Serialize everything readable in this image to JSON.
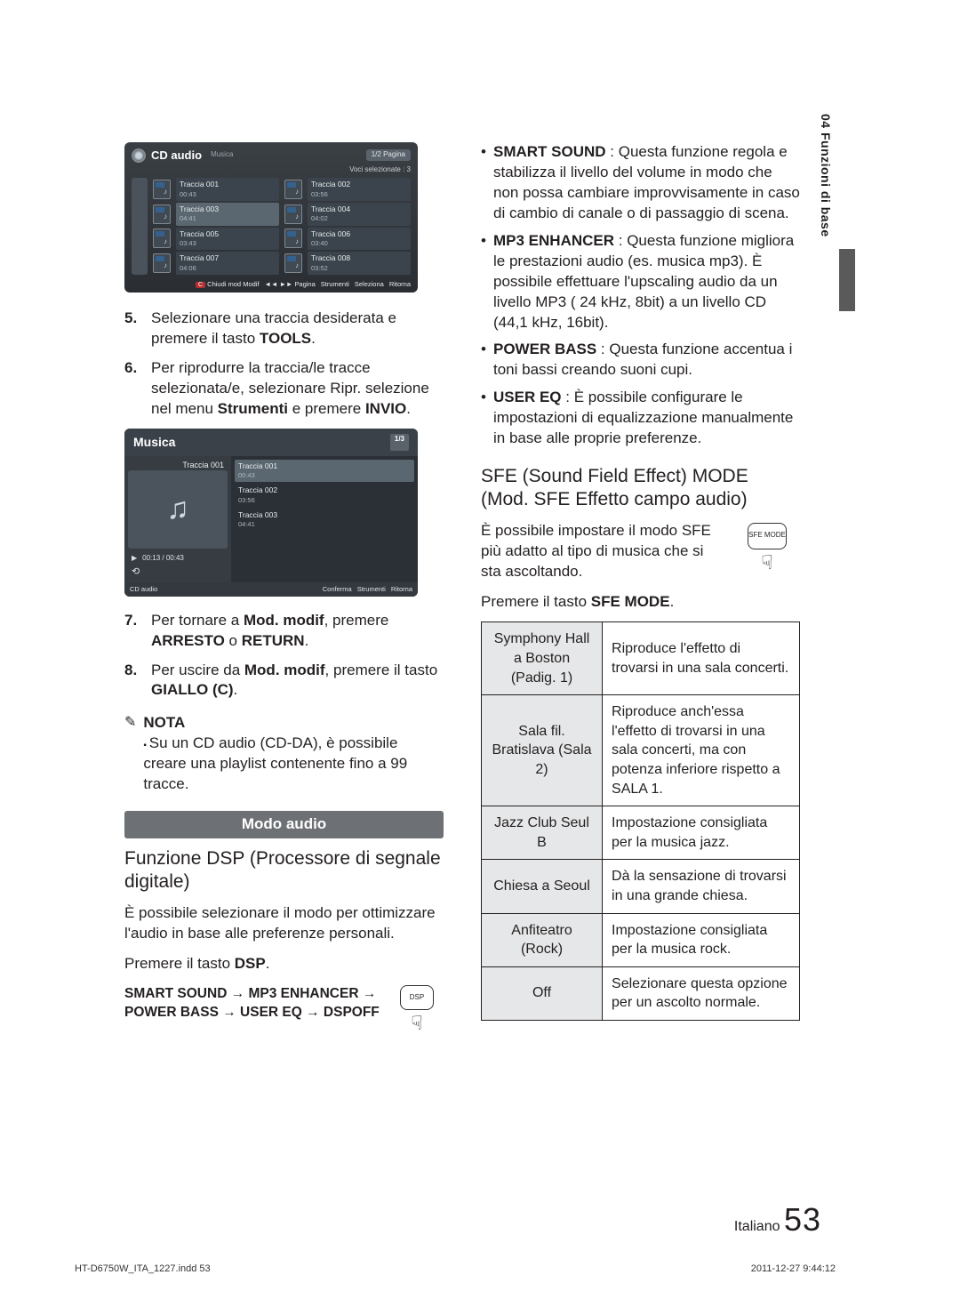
{
  "side_tab": "04  Funzioni di base",
  "cd_panel": {
    "title": "CD audio",
    "subtitle": "Musica",
    "pager": "1/2  Pagina",
    "selcount": "Voci selezionate : 3",
    "rows": [
      [
        {
          "name": "Traccia 001",
          "time": "00:43",
          "sel": false
        },
        {
          "name": "Traccia 002",
          "time": "03:56",
          "sel": false
        }
      ],
      [
        {
          "name": "Traccia 003",
          "time": "04:41",
          "sel": true
        },
        {
          "name": "Traccia 004",
          "time": "04:02",
          "sel": false
        }
      ],
      [
        {
          "name": "Traccia 005",
          "time": "03:43",
          "sel": false
        },
        {
          "name": "Traccia 006",
          "time": "03:40",
          "sel": false
        }
      ],
      [
        {
          "name": "Traccia 007",
          "time": "04:06",
          "sel": false
        },
        {
          "name": "Traccia 008",
          "time": "03:52",
          "sel": false
        }
      ]
    ],
    "footer": {
      "close_badge": "C",
      "close": "Chiudi mod Modif",
      "page": "◄◄ ►► Pagina",
      "tools": "Strumenti",
      "select": "Seleziona",
      "return": "Ritorna"
    }
  },
  "steps_left_a": [
    {
      "n": "5.",
      "html": "Selezionare una traccia desiderata e premere il tasto <b>TOOLS</b>."
    },
    {
      "n": "6.",
      "html": "Per riprodurre la traccia/le tracce selezionata/e, selezionare Ripr. selezione nel menu <b>Strumenti</b> e premere <b>INVIO</b>."
    }
  ],
  "musica_panel": {
    "title": "Musica",
    "pager": "1/3",
    "current": "Traccia 001",
    "progress": "00:13 / 00:43",
    "rows": [
      {
        "name": "Traccia 001",
        "time": "00:43",
        "sel": true
      },
      {
        "name": "Traccia 002",
        "time": "03:56",
        "sel": false
      },
      {
        "name": "Traccia 003",
        "time": "04:41",
        "sel": false
      }
    ],
    "foot_left": "CD audio",
    "foot_right": [
      "Conferma",
      "Strumenti",
      "Ritorna"
    ]
  },
  "steps_left_b": [
    {
      "n": "7.",
      "html": "Per tornare a <b>Mod. modif</b>, premere <b>ARRESTO</b> o <b>RETURN</b>."
    },
    {
      "n": "8.",
      "html": "Per uscire da <b>Mod. modif</b>, premere il tasto <b>GIALLO (C)</b>."
    }
  ],
  "note_label": "NOTA",
  "note_items": [
    "Su un CD audio (CD-DA), è possibile creare una playlist contenente fino a 99 tracce."
  ],
  "banner": "Modo audio",
  "dsp_heading": "Funzione DSP (Processore di segnale digitale)",
  "dsp_body": "È possibile selezionare il modo per ottimizzare l'audio in base alle preferenze personali.",
  "dsp_press": "Premere il tasto <b>DSP</b>.",
  "dsp_seq": "SMART SOUND → MP3 ENHANCER → POWER BASS → USER EQ → DSPOFF",
  "dsp_btn_label": "DSP",
  "features": [
    {
      "name": "SMART SOUND",
      "text": " : Questa funzione regola e stabilizza il livello del volume in modo che non possa cambiare improvvisamente in caso di cambio di canale o di passaggio di scena."
    },
    {
      "name": "MP3 ENHANCER",
      "text": " : Questa funzione migliora le prestazioni audio (es. musica mp3). È possibile effettuare l'upscaling audio da un livello MP3 ( 24 kHz, 8bit) a un livello CD (44,1 kHz, 16bit)."
    },
    {
      "name": "POWER BASS",
      "text": " : Questa funzione accentua i toni bassi creando suoni cupi."
    },
    {
      "name": "USER EQ",
      "text": " : È possibile configurare le impostazioni di equalizzazione manualmente in base alle proprie preferenze."
    }
  ],
  "sfe_heading": "SFE (Sound Field Effect) MODE (Mod. SFE Effetto campo audio)",
  "sfe_body": "È possibile impostare il modo SFE più adatto al tipo di musica che si sta ascoltando.",
  "sfe_press": "Premere il tasto <b>SFE MODE</b>.",
  "sfe_btn_label": "SFE MODE",
  "sfe_table": [
    {
      "mode": "Symphony Hall a Boston (Padig. 1)",
      "desc": "Riproduce l'effetto di trovarsi in una sala concerti."
    },
    {
      "mode": "Sala fil. Bratislava (Sala 2)",
      "desc": "Riproduce anch'essa l'effetto di trovarsi in una sala concerti, ma con potenza inferiore rispetto a SALA 1."
    },
    {
      "mode": "Jazz Club Seul B",
      "desc": "Impostazione consigliata per la musica jazz."
    },
    {
      "mode": "Chiesa a Seoul",
      "desc": "Dà la sensazione di trovarsi in una grande chiesa."
    },
    {
      "mode": "Anfiteatro (Rock)",
      "desc": "Impostazione consigliata per la musica rock."
    },
    {
      "mode": "Off",
      "desc": "Selezionare questa opzione per un ascolto normale."
    }
  ],
  "page_lang": "Italiano",
  "page_num": "53",
  "print_left": "HT-D6750W_ITA_1227.indd   53",
  "print_right": "2011-12-27   9:44:12"
}
